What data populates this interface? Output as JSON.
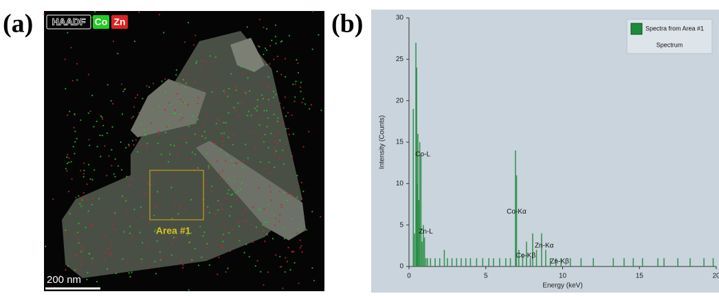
{
  "panel_labels": [
    "(a)",
    "(b)"
  ],
  "image": {
    "channels": [
      {
        "name": "HAADF",
        "color": "#ffffff"
      },
      {
        "name": "Co",
        "color": "#22cc22"
      },
      {
        "name": "Zn",
        "color": "#dd2222"
      }
    ],
    "region_label": "Area #1",
    "scale_bar": "200 nm"
  },
  "chart_data": {
    "type": "spectrum",
    "xlabel": "Energy (keV)",
    "ylabel": "Intensity (Counts)",
    "xlim": [
      0,
      20
    ],
    "xticks": [
      0,
      5,
      10,
      15,
      20
    ],
    "ylim": [
      0,
      30
    ],
    "yticks": [
      0,
      5,
      10,
      15,
      20,
      25,
      30
    ],
    "legend_position": "upper right",
    "legend_note": "Spectrum",
    "x": [
      0.28,
      0.36,
      0.45,
      0.5,
      0.53,
      0.58,
      0.64,
      0.7,
      0.78,
      0.85,
      0.93,
      1.01,
      1.1,
      1.2,
      1.4,
      1.7,
      2.0,
      2.3,
      2.5,
      2.8,
      3.1,
      3.4,
      3.7,
      4.0,
      4.4,
      4.8,
      5.2,
      5.5,
      5.9,
      6.3,
      6.6,
      6.93,
      7.0,
      7.15,
      7.4,
      7.65,
      7.9,
      8.05,
      8.3,
      8.63,
      8.9,
      9.2,
      9.57,
      9.9,
      10.5,
      11.2,
      12.0,
      13.3,
      14.0,
      14.6,
      15.2,
      16.2,
      16.6,
      17.5,
      18.3,
      19.2,
      19.8
    ],
    "series": [
      {
        "name": "Spectra from Area #1",
        "color": "#1f8a3c",
        "values": [
          19,
          4,
          27,
          24,
          10,
          16,
          8,
          15,
          13.5,
          3,
          5,
          3.5,
          1,
          1,
          1,
          1,
          1,
          2,
          1,
          1,
          1,
          1,
          1,
          1,
          1,
          1,
          1,
          1,
          1,
          1,
          1,
          14,
          11,
          2,
          1.5,
          3,
          1,
          4,
          2,
          4,
          2,
          1,
          1,
          1,
          1,
          1,
          1,
          1,
          1,
          1,
          1,
          1,
          1,
          1,
          1,
          1,
          1
        ]
      }
    ],
    "annotations": [
      {
        "text": "Co-L",
        "x": 0.9,
        "y": 13.5
      },
      {
        "text": "Zn-L",
        "x": 1.1,
        "y": 4.2
      },
      {
        "text": "Co-Kα",
        "x": 7.0,
        "y": 6.6
      },
      {
        "text": "Co-Kβ",
        "x": 7.6,
        "y": 1.3
      },
      {
        "text": "Zn-Kα",
        "x": 8.8,
        "y": 2.5
      },
      {
        "text": "Zn-Kβ",
        "x": 9.8,
        "y": 0.6
      }
    ]
  }
}
